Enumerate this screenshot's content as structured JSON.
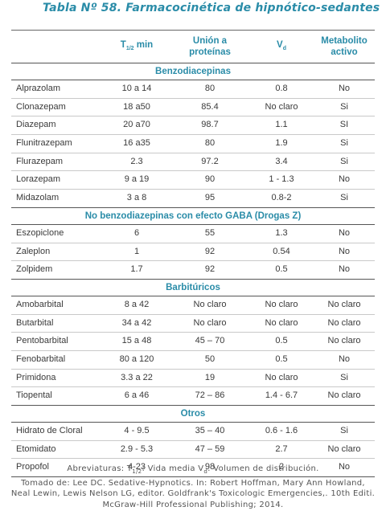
{
  "title": "Tabla Nº 58. Farmacocinética de hipnótico-sedantes",
  "headers": {
    "thalf_main": "T",
    "thalf_sub": "1/2",
    "thalf_unit": " min",
    "binding_line1": "Unión a",
    "binding_line2": "proteínas",
    "vd_main": "V",
    "vd_sub": "d",
    "metab_line1": "Metabolito",
    "metab_line2": "activo"
  },
  "sections": [
    {
      "title": "Benzodiacepinas",
      "rows": [
        [
          "Alprazolam",
          "10 a 14",
          "80",
          "0.8",
          "No"
        ],
        [
          "Clonazepam",
          "18 a50",
          "85.4",
          "No claro",
          "Si"
        ],
        [
          "Diazepam",
          "20 a70",
          "98.7",
          "1.1",
          "SI"
        ],
        [
          "Flunitrazepam",
          "16 a35",
          "80",
          "1.9",
          "Si"
        ],
        [
          "Flurazepam",
          "2.3",
          "97.2",
          "3.4",
          "Si"
        ],
        [
          "Lorazepam",
          "9 a 19",
          "90",
          "1 - 1.3",
          "No"
        ],
        [
          "Midazolam",
          "3 a 8",
          "95",
          "0.8-2",
          "Si"
        ]
      ]
    },
    {
      "title": "No benzodiazepinas con efecto GABA (Drogas Z)",
      "rows": [
        [
          "Eszopiclone",
          "6",
          "55",
          "1.3",
          "No"
        ],
        [
          "Zaleplon",
          "1",
          "92",
          "0.54",
          "No"
        ],
        [
          "Zolpidem",
          "1.7",
          "92",
          "0.5",
          "No"
        ]
      ]
    },
    {
      "title": "Barbitúricos",
      "rows": [
        [
          "Amobarbital",
          "8 a 42",
          "No claro",
          "No claro",
          "No claro"
        ],
        [
          "Butarbital",
          "34 a 42",
          "No claro",
          "No claro",
          "No claro"
        ],
        [
          "Pentobarbital",
          "15 a 48",
          "45 – 70",
          "0.5",
          "No claro"
        ],
        [
          "Fenobarbital",
          "80 a 120",
          "50",
          "0.5",
          "No"
        ],
        [
          "Primidona",
          "3.3 a 22",
          "19",
          "No claro",
          "Si"
        ],
        [
          "Tiopental",
          "6 a 46",
          "72 – 86",
          "1.4 - 6.7",
          "No claro"
        ]
      ]
    },
    {
      "title": "Otros",
      "rows": [
        [
          "Hidrato de Cloral",
          "4 - 9.5",
          "35 – 40",
          "0.6 - 1.6",
          "Si"
        ],
        [
          "Etomidato",
          "2.9 - 5.3",
          "47 – 59",
          "2.7",
          "No claro"
        ],
        [
          "Propofol",
          "4-23",
          "98",
          "2",
          "No"
        ]
      ]
    }
  ],
  "footer": {
    "abbr_a": "Abreviaturas: T",
    "abbr_sub1": "1/2",
    "abbr_b": ": Vida media V",
    "abbr_sub2": "d",
    "abbr_c": ": Volumen de distribución.",
    "line2": "Tomado de: Lee DC. Sedative-Hypnotics. In: Robert Hoffman, Mary Ann Howland,",
    "line3": "Neal Lewin, Lewis Nelson LG, editor. Goldfrank's Toxicologic Emergencies,. 10th Editi.",
    "line4": "McGraw-Hill Professional Publishing; 2014."
  }
}
